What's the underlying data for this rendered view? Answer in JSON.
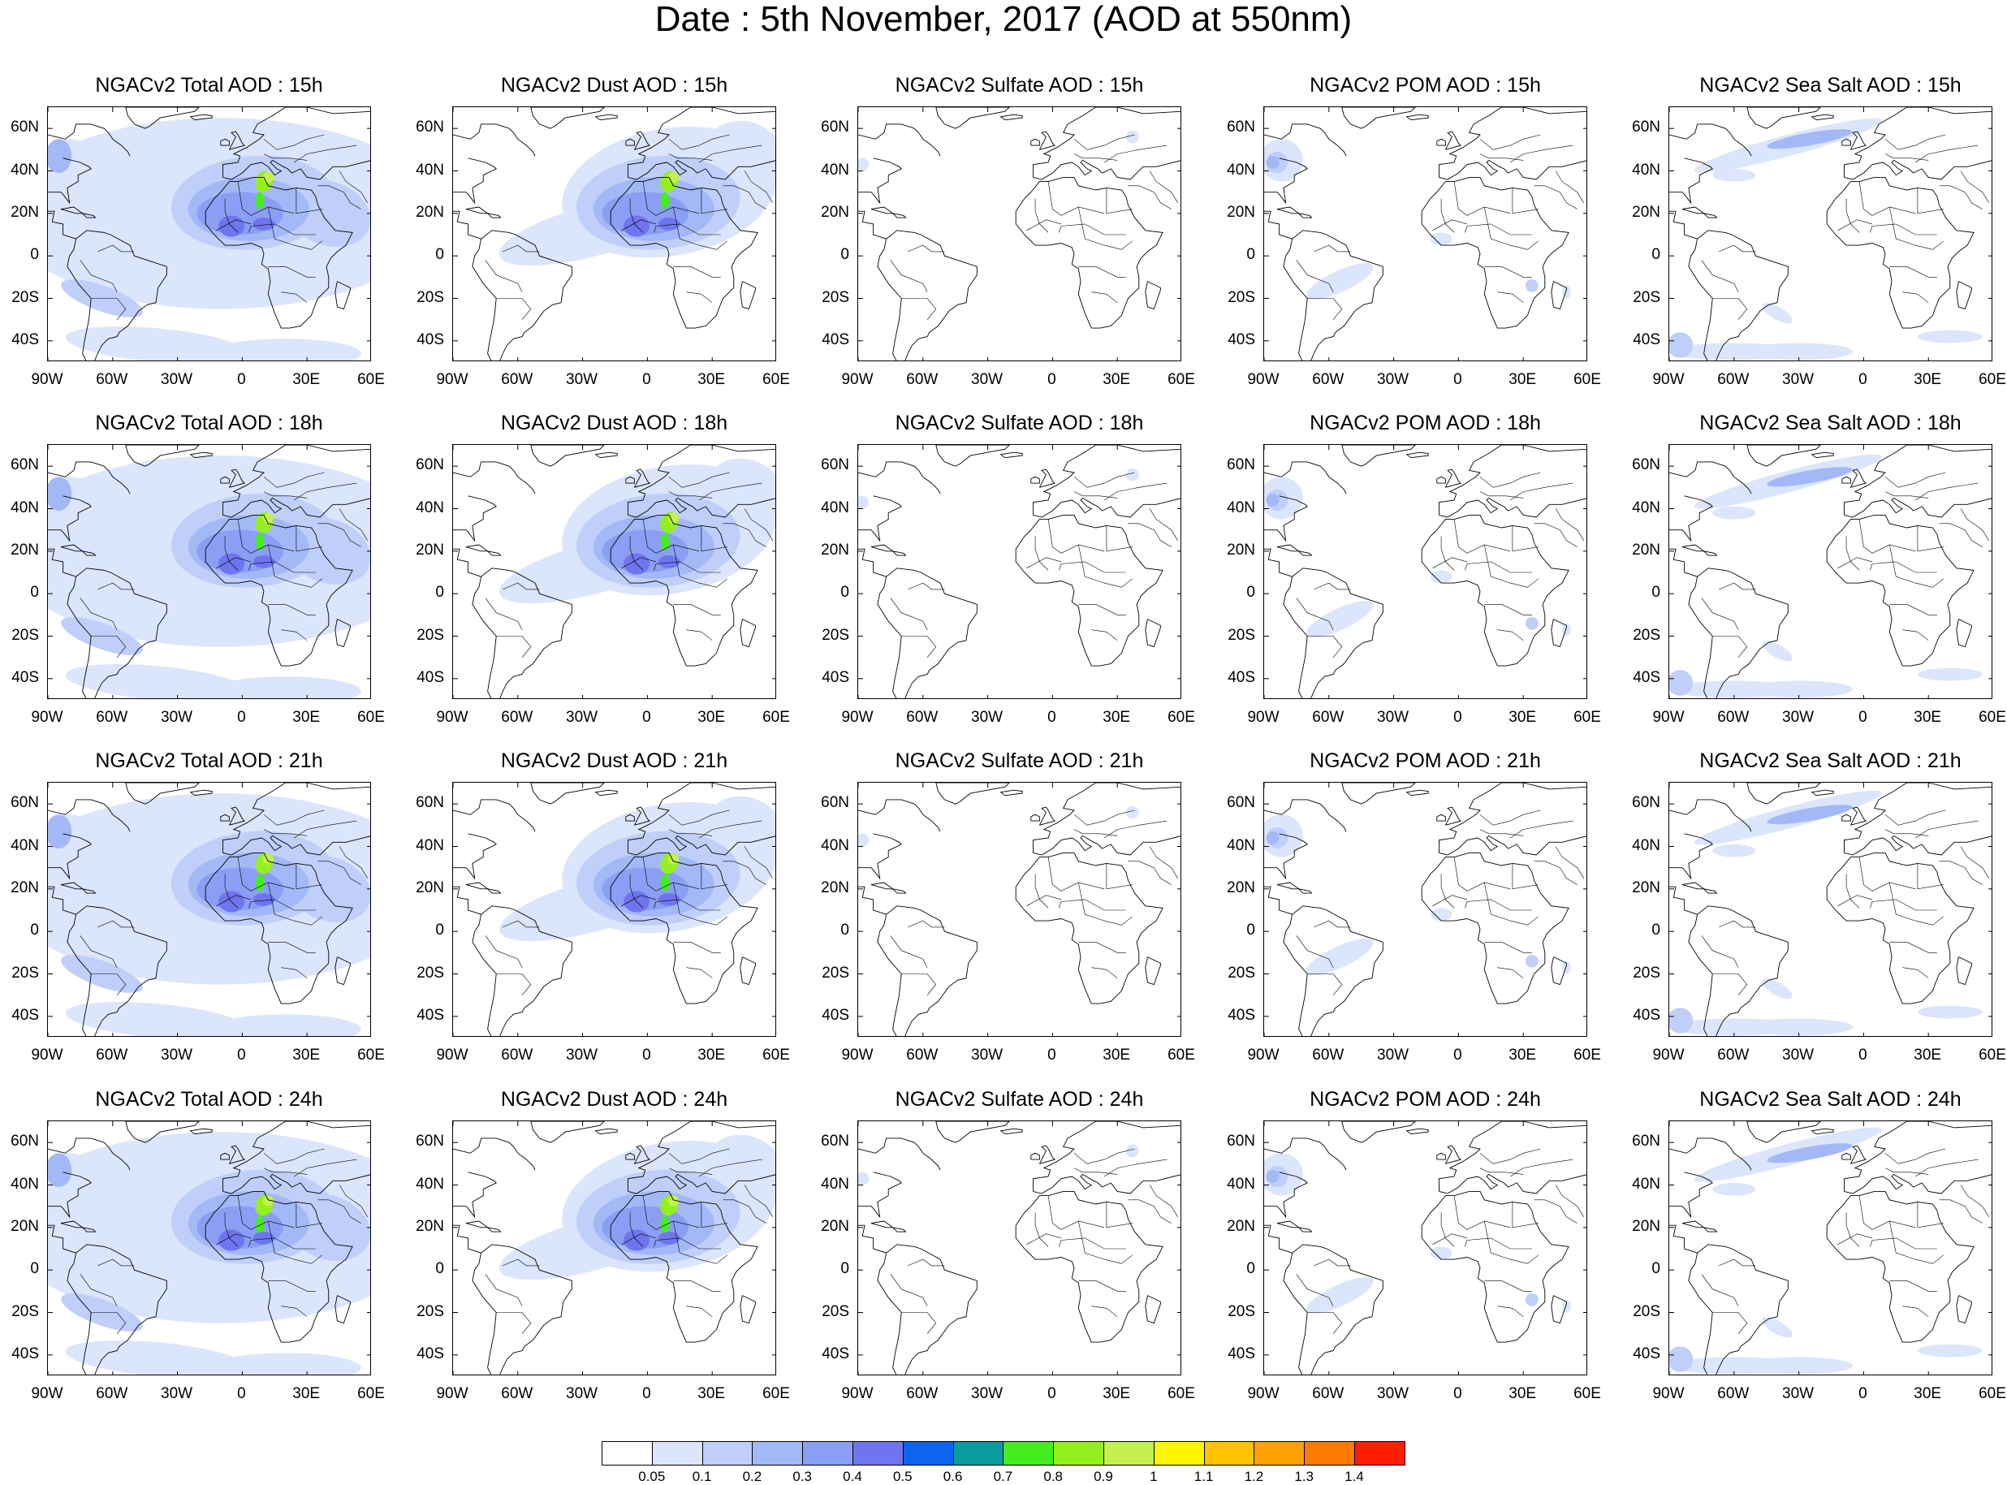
{
  "title": "Date : 5th November, 2017 (AOD at 550nm)",
  "species": [
    "Total",
    "Dust",
    "Sulfate",
    "POM",
    "Sea Salt"
  ],
  "hours": [
    "15h",
    "18h",
    "21h",
    "24h"
  ],
  "panel_titles": [
    [
      "NGACv2 Total AOD : 15h",
      "NGACv2 Dust AOD : 15h",
      "NGACv2 Sulfate AOD : 15h",
      "NGACv2 POM AOD : 15h",
      "NGACv2 Sea Salt AOD : 15h"
    ],
    [
      "NGACv2 Total AOD : 18h",
      "NGACv2 Dust AOD : 18h",
      "NGACv2 Sulfate AOD : 18h",
      "NGACv2 POM AOD : 18h",
      "NGACv2 Sea Salt AOD : 18h"
    ],
    [
      "NGACv2 Total AOD : 21h",
      "NGACv2 Dust AOD : 21h",
      "NGACv2 Sulfate AOD : 21h",
      "NGACv2 POM AOD : 21h",
      "NGACv2 Sea Salt AOD : 21h"
    ],
    [
      "NGACv2 Total AOD : 24h",
      "NGACv2 Dust AOD : 24h",
      "NGACv2 Sulfate AOD : 24h",
      "NGACv2 POM AOD : 24h",
      "NGACv2 Sea Salt  AOD : 24h"
    ]
  ],
  "map_extent": {
    "lon_min": -90,
    "lon_max": 60,
    "lat_min": -50,
    "lat_max": 70
  },
  "lat_ticks": [
    {
      "value": 60,
      "label": "60N"
    },
    {
      "value": 40,
      "label": "40N"
    },
    {
      "value": 20,
      "label": "20N"
    },
    {
      "value": 0,
      "label": "0"
    },
    {
      "value": -20,
      "label": "20S"
    },
    {
      "value": -40,
      "label": "40S"
    }
  ],
  "lon_ticks": [
    {
      "value": -90,
      "label": "90W"
    },
    {
      "value": -60,
      "label": "60W"
    },
    {
      "value": -30,
      "label": "30W"
    },
    {
      "value": 0,
      "label": "0"
    },
    {
      "value": 30,
      "label": "30E"
    },
    {
      "value": 60,
      "label": "60E"
    }
  ],
  "colorbar": {
    "colors": [
      "#ffffff",
      "#dbe5fc",
      "#bfcff9",
      "#a3b8f6",
      "#8a9ef3",
      "#6f75ee",
      "#0b65ee",
      "#0a9d9d",
      "#45ed1f",
      "#93f01e",
      "#c4f14f",
      "#fff500",
      "#ffc300",
      "#ffa100",
      "#ff7a00",
      "#ff1f00"
    ],
    "labels": [
      "0.05",
      "0.1",
      "0.2",
      "0.3",
      "0.4",
      "0.5",
      "0.6",
      "0.7",
      "0.8",
      "0.9",
      "1",
      "1.1",
      "1.2",
      "1.3",
      "1.4"
    ]
  }
}
